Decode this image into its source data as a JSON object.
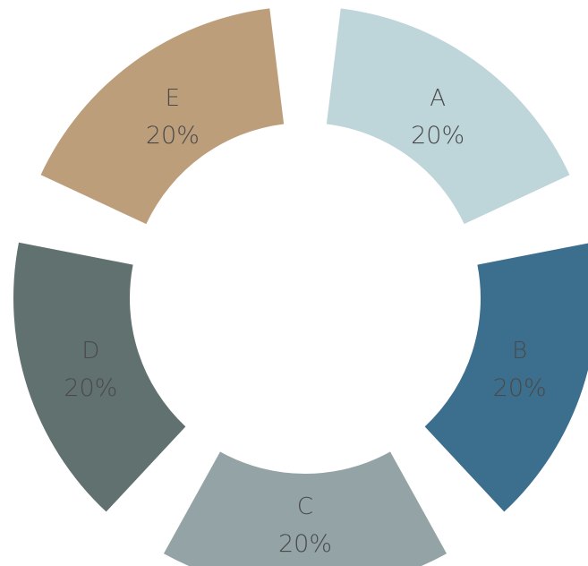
{
  "chart_data": {
    "type": "pie",
    "variant": "donut",
    "title": "",
    "legend": "none",
    "slices": [
      {
        "label": "A",
        "value": 20,
        "value_label": "20%",
        "color": "#bed5da"
      },
      {
        "label": "B",
        "value": 20,
        "value_label": "20%",
        "color": "#3c6e8e"
      },
      {
        "label": "C",
        "value": 20,
        "value_label": "20%",
        "color": "#93a3a6"
      },
      {
        "label": "D",
        "value": 20,
        "value_label": "20%",
        "color": "#617170"
      },
      {
        "label": "E",
        "value": 20,
        "value_label": "20%",
        "color": "#bc9e7b"
      }
    ]
  }
}
